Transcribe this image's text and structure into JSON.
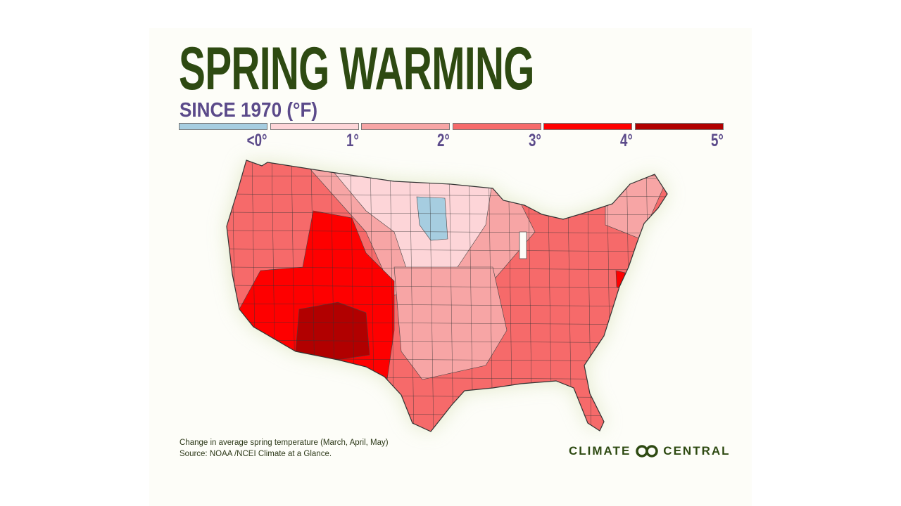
{
  "title": "SPRING WARMING",
  "subtitle": "SINCE 1970 (°F)",
  "legend": [
    {
      "label": "<0°",
      "color": "#a6cde0"
    },
    {
      "label": "1°",
      "color": "#fdd5d8"
    },
    {
      "label": "2°",
      "color": "#f7a5a5"
    },
    {
      "label": "3°",
      "color": "#f66a6a"
    },
    {
      "label": "4°",
      "color": "#fe0000"
    },
    {
      "label": "5°",
      "color": "#b10000"
    }
  ],
  "map": {
    "region": "Contiguous United States",
    "units": "climate divisions",
    "hotspot": "Southwest (Arizona, New Mexico)",
    "cooling_area": "Eastern North & South Dakota"
  },
  "notes": {
    "line1": "Change in average spring temperature (March, April, May)",
    "line2": "Source:  NOAA /NCEI Climate at a Glance."
  },
  "logo": {
    "left": "CLIMATE",
    "right": "CENTRAL",
    "brand_color": "#2e4a12"
  }
}
